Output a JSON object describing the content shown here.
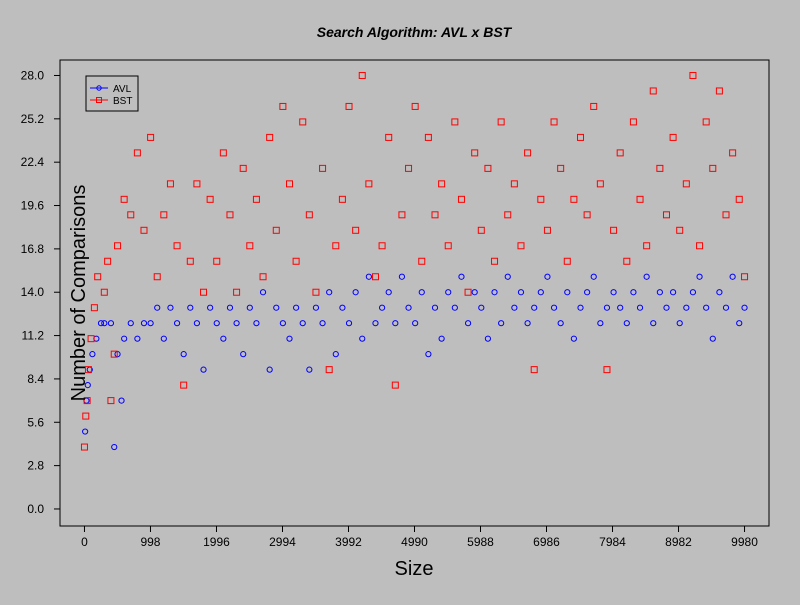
{
  "chart_data": {
    "type": "scatter",
    "title": "Search Algorithm: AVL x BST",
    "xlabel": "Size",
    "ylabel": "Number of Comparisons",
    "xlim": [
      -370,
      10350
    ],
    "ylim": [
      -1.1,
      29.0
    ],
    "x_ticks": [
      0,
      998,
      1996,
      2994,
      3992,
      4990,
      5988,
      6986,
      7984,
      8982,
      9980
    ],
    "y_ticks": [
      0.0,
      2.8,
      5.6,
      8.4,
      11.2,
      14.0,
      16.8,
      19.6,
      22.4,
      25.2,
      28.0
    ],
    "grid": false,
    "legend_position": "top-left",
    "series": [
      {
        "name": "AVL",
        "color": "#0000ff",
        "marker": "circle",
        "points": [
          [
            10,
            5
          ],
          [
            30,
            7
          ],
          [
            50,
            8
          ],
          [
            80,
            9
          ],
          [
            120,
            10
          ],
          [
            180,
            11
          ],
          [
            250,
            12
          ],
          [
            300,
            12
          ],
          [
            400,
            12
          ],
          [
            450,
            4
          ],
          [
            500,
            10
          ],
          [
            560,
            7
          ],
          [
            600,
            11
          ],
          [
            700,
            12
          ],
          [
            800,
            11
          ],
          [
            900,
            12
          ],
          [
            1000,
            12
          ],
          [
            1100,
            13
          ],
          [
            1200,
            11
          ],
          [
            1300,
            13
          ],
          [
            1400,
            12
          ],
          [
            1500,
            10
          ],
          [
            1600,
            13
          ],
          [
            1700,
            12
          ],
          [
            1800,
            9
          ],
          [
            1900,
            13
          ],
          [
            2000,
            12
          ],
          [
            2100,
            11
          ],
          [
            2200,
            13
          ],
          [
            2300,
            12
          ],
          [
            2400,
            10
          ],
          [
            2500,
            13
          ],
          [
            2600,
            12
          ],
          [
            2700,
            14
          ],
          [
            2800,
            9
          ],
          [
            2900,
            13
          ],
          [
            3000,
            12
          ],
          [
            3100,
            11
          ],
          [
            3200,
            13
          ],
          [
            3300,
            12
          ],
          [
            3400,
            9
          ],
          [
            3500,
            13
          ],
          [
            3600,
            12
          ],
          [
            3700,
            14
          ],
          [
            3800,
            10
          ],
          [
            3900,
            13
          ],
          [
            4000,
            12
          ],
          [
            4100,
            14
          ],
          [
            4200,
            11
          ],
          [
            4300,
            15
          ],
          [
            4400,
            12
          ],
          [
            4500,
            13
          ],
          [
            4600,
            14
          ],
          [
            4700,
            12
          ],
          [
            4800,
            15
          ],
          [
            4900,
            13
          ],
          [
            5000,
            12
          ],
          [
            5100,
            14
          ],
          [
            5200,
            10
          ],
          [
            5300,
            13
          ],
          [
            5400,
            11
          ],
          [
            5500,
            14
          ],
          [
            5600,
            13
          ],
          [
            5700,
            15
          ],
          [
            5800,
            12
          ],
          [
            5900,
            14
          ],
          [
            6000,
            13
          ],
          [
            6100,
            11
          ],
          [
            6200,
            14
          ],
          [
            6300,
            12
          ],
          [
            6400,
            15
          ],
          [
            6500,
            13
          ],
          [
            6600,
            14
          ],
          [
            6700,
            12
          ],
          [
            6800,
            13
          ],
          [
            6900,
            14
          ],
          [
            7000,
            15
          ],
          [
            7100,
            13
          ],
          [
            7200,
            12
          ],
          [
            7300,
            14
          ],
          [
            7400,
            11
          ],
          [
            7500,
            13
          ],
          [
            7600,
            14
          ],
          [
            7700,
            15
          ],
          [
            7800,
            12
          ],
          [
            7900,
            13
          ],
          [
            8000,
            14
          ],
          [
            8100,
            13
          ],
          [
            8200,
            12
          ],
          [
            8300,
            14
          ],
          [
            8400,
            13
          ],
          [
            8500,
            15
          ],
          [
            8600,
            12
          ],
          [
            8700,
            14
          ],
          [
            8800,
            13
          ],
          [
            8900,
            14
          ],
          [
            9000,
            12
          ],
          [
            9100,
            13
          ],
          [
            9200,
            14
          ],
          [
            9300,
            15
          ],
          [
            9400,
            13
          ],
          [
            9500,
            11
          ],
          [
            9600,
            14
          ],
          [
            9700,
            13
          ],
          [
            9800,
            15
          ],
          [
            9900,
            12
          ],
          [
            9980,
            13
          ]
        ]
      },
      {
        "name": "BST",
        "color": "#ff0000",
        "marker": "square",
        "points": [
          [
            0,
            4
          ],
          [
            20,
            6
          ],
          [
            40,
            7
          ],
          [
            60,
            9
          ],
          [
            100,
            11
          ],
          [
            150,
            13
          ],
          [
            200,
            15
          ],
          [
            300,
            14
          ],
          [
            350,
            16
          ],
          [
            400,
            7
          ],
          [
            450,
            10
          ],
          [
            500,
            17
          ],
          [
            600,
            20
          ],
          [
            700,
            19
          ],
          [
            800,
            23
          ],
          [
            900,
            18
          ],
          [
            1000,
            24
          ],
          [
            1100,
            15
          ],
          [
            1200,
            19
          ],
          [
            1300,
            21
          ],
          [
            1400,
            17
          ],
          [
            1500,
            8
          ],
          [
            1600,
            16
          ],
          [
            1700,
            21
          ],
          [
            1800,
            14
          ],
          [
            1900,
            20
          ],
          [
            2000,
            16
          ],
          [
            2100,
            23
          ],
          [
            2200,
            19
          ],
          [
            2300,
            14
          ],
          [
            2400,
            22
          ],
          [
            2500,
            17
          ],
          [
            2600,
            20
          ],
          [
            2700,
            15
          ],
          [
            2800,
            24
          ],
          [
            2900,
            18
          ],
          [
            3000,
            26
          ],
          [
            3100,
            21
          ],
          [
            3200,
            16
          ],
          [
            3300,
            25
          ],
          [
            3400,
            19
          ],
          [
            3500,
            14
          ],
          [
            3600,
            22
          ],
          [
            3700,
            9
          ],
          [
            3800,
            17
          ],
          [
            3900,
            20
          ],
          [
            4000,
            26
          ],
          [
            4100,
            18
          ],
          [
            4200,
            28
          ],
          [
            4300,
            21
          ],
          [
            4400,
            15
          ],
          [
            4500,
            17
          ],
          [
            4600,
            24
          ],
          [
            4700,
            8
          ],
          [
            4800,
            19
          ],
          [
            4900,
            22
          ],
          [
            5000,
            26
          ],
          [
            5100,
            16
          ],
          [
            5200,
            24
          ],
          [
            5300,
            19
          ],
          [
            5400,
            21
          ],
          [
            5500,
            17
          ],
          [
            5600,
            25
          ],
          [
            5700,
            20
          ],
          [
            5800,
            14
          ],
          [
            5900,
            23
          ],
          [
            6000,
            18
          ],
          [
            6100,
            22
          ],
          [
            6200,
            16
          ],
          [
            6300,
            25
          ],
          [
            6400,
            19
          ],
          [
            6500,
            21
          ],
          [
            6600,
            17
          ],
          [
            6700,
            23
          ],
          [
            6800,
            9
          ],
          [
            6900,
            20
          ],
          [
            7000,
            18
          ],
          [
            7100,
            25
          ],
          [
            7200,
            22
          ],
          [
            7300,
            16
          ],
          [
            7400,
            20
          ],
          [
            7500,
            24
          ],
          [
            7600,
            19
          ],
          [
            7700,
            26
          ],
          [
            7800,
            21
          ],
          [
            7900,
            9
          ],
          [
            8000,
            18
          ],
          [
            8100,
            23
          ],
          [
            8200,
            16
          ],
          [
            8300,
            25
          ],
          [
            8400,
            20
          ],
          [
            8500,
            17
          ],
          [
            8600,
            27
          ],
          [
            8700,
            22
          ],
          [
            8800,
            19
          ],
          [
            8900,
            24
          ],
          [
            9000,
            18
          ],
          [
            9100,
            21
          ],
          [
            9200,
            28
          ],
          [
            9300,
            17
          ],
          [
            9400,
            25
          ],
          [
            9500,
            22
          ],
          [
            9600,
            27
          ],
          [
            9700,
            19
          ],
          [
            9800,
            23
          ],
          [
            9900,
            20
          ],
          [
            9980,
            15
          ]
        ]
      }
    ]
  }
}
